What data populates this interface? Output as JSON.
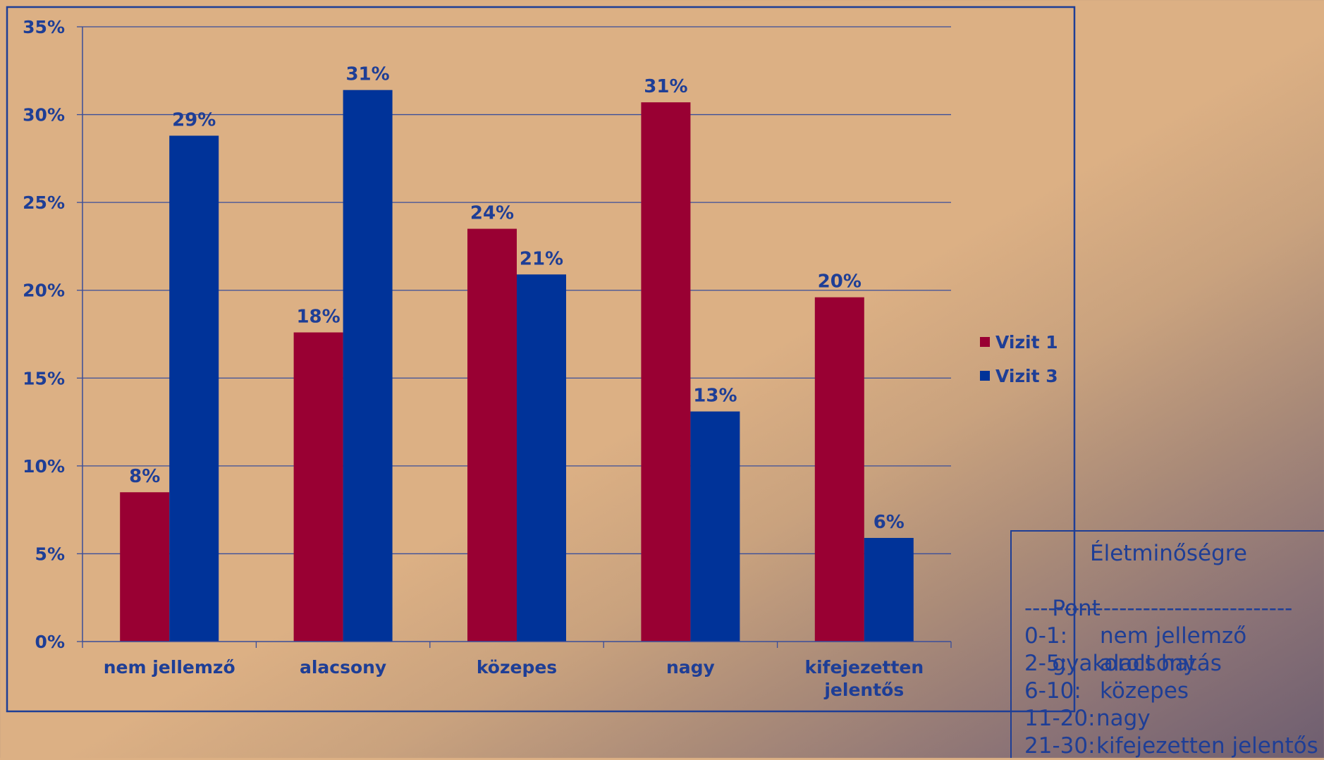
{
  "chart_data": {
    "type": "bar",
    "categories": [
      "nem jellemző",
      "alacsony",
      "közepes",
      "nagy",
      "kifejezetten jelentős"
    ],
    "category_lines": [
      [
        "nem jellemző"
      ],
      [
        "alacsony"
      ],
      [
        "közepes"
      ],
      [
        "nagy"
      ],
      [
        "kifejezetten",
        "jelentős"
      ]
    ],
    "series": [
      {
        "name": "Vizit 1",
        "color": "#990033",
        "values": [
          8.5,
          17.6,
          23.5,
          30.7,
          19.6
        ],
        "labels": [
          "8%",
          "18%",
          "24%",
          "31%",
          "20%"
        ]
      },
      {
        "name": "Vizit 3",
        "color": "#003399",
        "values": [
          28.8,
          31.4,
          20.9,
          13.1,
          5.9
        ],
        "labels": [
          "29%",
          "31%",
          "21%",
          "13%",
          "6%"
        ]
      }
    ],
    "ylim": [
      0,
      35
    ],
    "yticks": [
      0,
      5,
      10,
      15,
      20,
      25,
      30,
      35
    ],
    "ytick_labels": [
      "0%",
      "5%",
      "10%",
      "15%",
      "20%",
      "25%",
      "30%",
      "35%"
    ],
    "grid": true,
    "legend_position": "right",
    "title": "",
    "xlabel": "",
    "ylabel": ""
  },
  "legend_box": {
    "title_line1": "Életminőségre",
    "pont_label": "Pont",
    "title_line2": "gyakorolt hatás",
    "separator": "----------------------------------",
    "rows": [
      {
        "points": "0-1:",
        "label": "nem jellemző"
      },
      {
        "points": "2-5:",
        "label": "alacsony"
      },
      {
        "points": "6-10:",
        "label": "közepes"
      },
      {
        "points": "11-20:",
        "label": "nagy"
      },
      {
        "points": "21-30:",
        "label": "kifejezetten jelentős"
      }
    ]
  },
  "colors": {
    "text": "#1E3E96",
    "frame": "#1E3E96",
    "grid": "#3A4E9A"
  }
}
